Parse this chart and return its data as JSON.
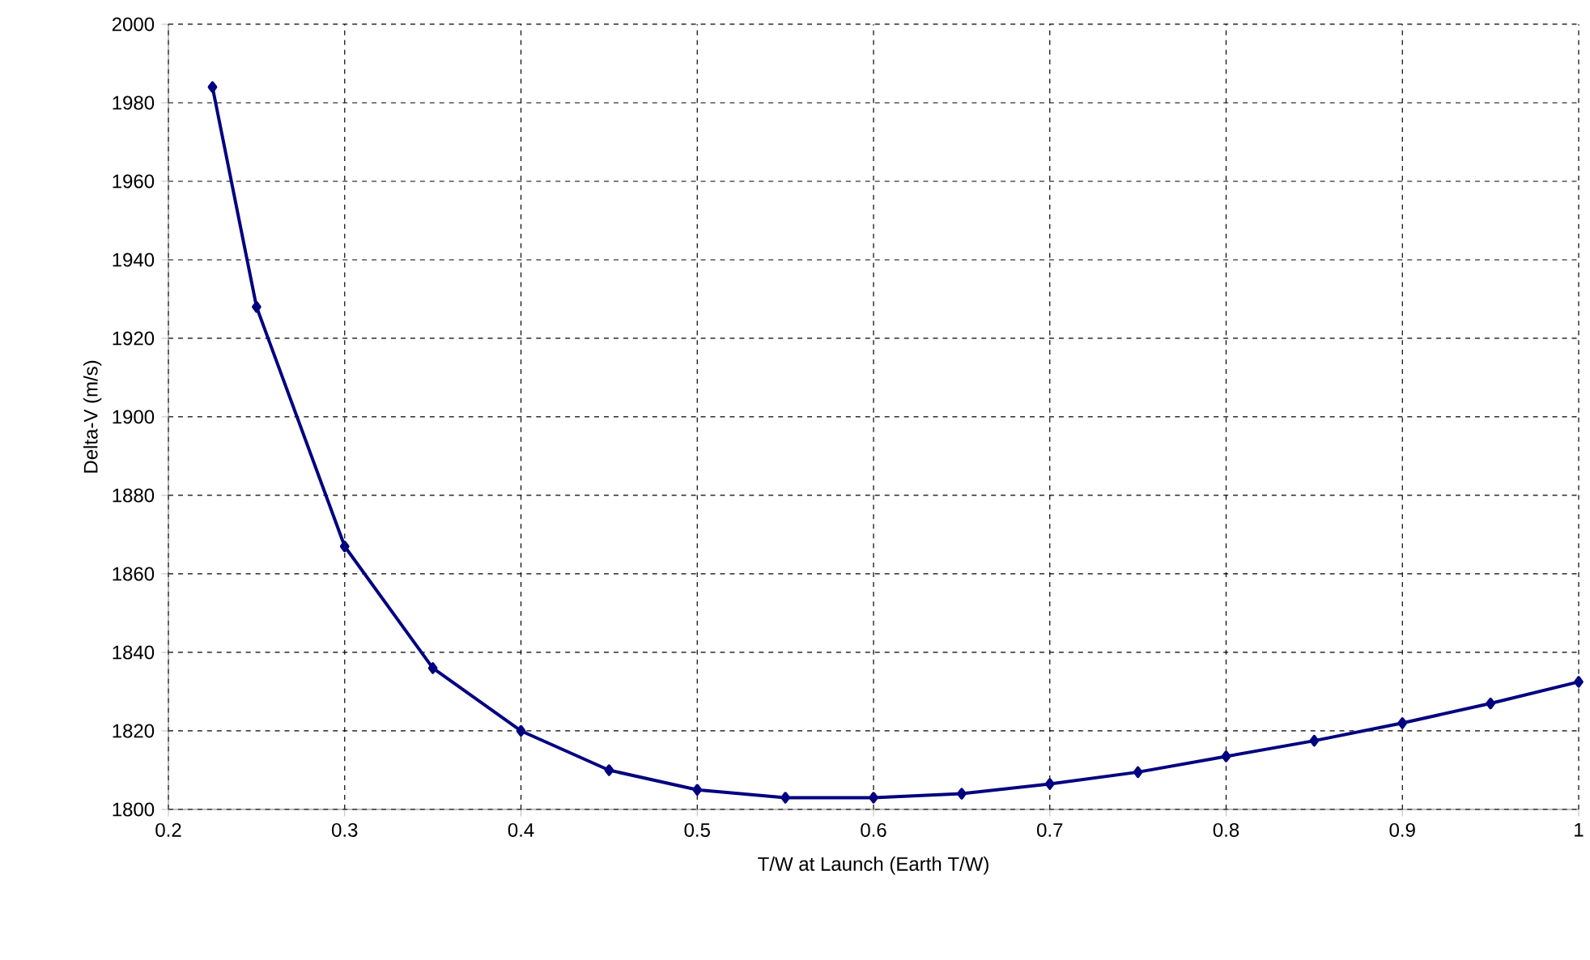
{
  "chart_data": {
    "type": "line",
    "xlabel": "T/W at Launch (Earth T/W)",
    "ylabel": "Delta-V (m/s)",
    "series": [
      {
        "color": "#000080",
        "x": [
          0.225,
          0.25,
          0.3,
          0.35,
          0.4,
          0.45,
          0.5,
          0.55,
          0.6,
          0.65,
          0.7,
          0.75,
          0.8,
          0.85,
          0.9,
          0.95,
          1.0
        ],
        "values": [
          1984,
          1928,
          1867,
          1836,
          1820,
          1810,
          1805,
          1803,
          1803,
          1804,
          1806.5,
          1809.5,
          1813.5,
          1817.5,
          1822,
          1827,
          1832.5
        ]
      }
    ],
    "xlim": [
      0.2,
      1
    ],
    "ylim": [
      1800,
      2000
    ],
    "xticks": [
      0.2,
      0.3,
      0.4,
      0.5,
      0.6,
      0.7,
      0.8,
      0.9,
      1
    ],
    "yticks": [
      1800,
      1820,
      1840,
      1860,
      1880,
      1900,
      1920,
      1940,
      1960,
      1980,
      2000
    ],
    "grid": true,
    "marker": "diamond",
    "line_style": "solid"
  }
}
